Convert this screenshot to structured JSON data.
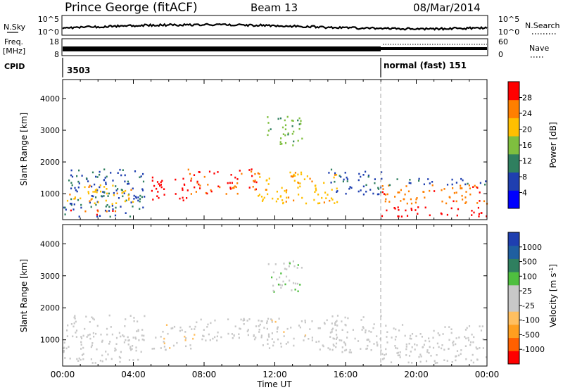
{
  "header": {
    "station": "Prince George (fitACF)",
    "beam": "Beam 13",
    "date": "08/Mar/2014"
  },
  "noise_panel": {
    "left_label": "N.Sky",
    "left_ticks": [
      "10^5",
      "10^0"
    ],
    "right_label": "N.Search",
    "right_ticks": [
      "10^5",
      "10^0"
    ]
  },
  "freq_panel": {
    "left_label_1": "Freq.",
    "left_label_2": "[MHz]",
    "left_ticks": [
      "18",
      "8"
    ],
    "right_label": "Nave",
    "right_ticks": [
      "60",
      "0"
    ]
  },
  "cpid_panel": {
    "label": "CPID",
    "mode_1": "3503",
    "mode_2": "normal (fast) 151"
  },
  "x_axis": {
    "label": "Time UT",
    "ticks": [
      "00:00",
      "04:00",
      "08:00",
      "12:00",
      "16:00",
      "20:00",
      "00:00"
    ]
  },
  "chart_data": [
    {
      "type": "heatmap",
      "title": "",
      "xlabel": "Time UT",
      "ylabel": "Slant Range [km]",
      "xlim_hours": [
        0,
        24
      ],
      "ylim": [
        180,
        4600
      ],
      "yticks": [
        1000,
        2000,
        3000,
        4000
      ],
      "colorbar": {
        "label": "Power [dB]",
        "ticks": [
          "28",
          "24",
          "20",
          "16",
          "12",
          "8",
          "4"
        ],
        "range": [
          0,
          30
        ],
        "colors": [
          "#0000ff",
          "#1f3fb0",
          "#2f7f5f",
          "#7fbf3f",
          "#ffbf00",
          "#ff7f00",
          "#ff0000"
        ]
      },
      "scatter_regions": [
        {
          "t0": 0.0,
          "t1": 4.6,
          "r0": 300,
          "r1": 1800,
          "level": 8
        },
        {
          "t0": 0.2,
          "t1": 4.0,
          "r0": 700,
          "r1": 1300,
          "level": 20
        },
        {
          "t0": 0.2,
          "t1": 3.0,
          "r0": 350,
          "r1": 500,
          "level": 26
        },
        {
          "t0": 5.0,
          "t1": 7.0,
          "r0": 800,
          "r1": 1600,
          "level": 28
        },
        {
          "t0": 7.0,
          "t1": 11.0,
          "r0": 1000,
          "r1": 1800,
          "level": 26
        },
        {
          "t0": 11.0,
          "t1": 15.5,
          "r0": 700,
          "r1": 1700,
          "level": 20
        },
        {
          "t0": 11.5,
          "t1": 13.5,
          "r0": 2500,
          "r1": 3500,
          "level": 14
        },
        {
          "t0": 15.0,
          "t1": 18.0,
          "r0": 1000,
          "r1": 1800,
          "level": 8
        },
        {
          "t0": 18.0,
          "t1": 24.0,
          "r0": 700,
          "r1": 1300,
          "level": 24
        },
        {
          "t0": 18.0,
          "t1": 24.0,
          "r0": 300,
          "r1": 600,
          "level": 28
        },
        {
          "t0": 18.0,
          "t1": 24.0,
          "r0": 1300,
          "r1": 1500,
          "level": 8
        }
      ]
    },
    {
      "type": "heatmap",
      "title": "",
      "xlabel": "Time UT",
      "ylabel": "Slant Range [km]",
      "xlim_hours": [
        0,
        24
      ],
      "ylim": [
        180,
        4600
      ],
      "yticks": [
        1000,
        2000,
        3000,
        4000
      ],
      "colorbar": {
        "label": "Velocity [m s^-1]",
        "ticks": [
          "1000",
          "500",
          "100",
          "25",
          "-25",
          "-100",
          "-500",
          "-1000"
        ],
        "range": [
          -1200,
          1200
        ],
        "colors": [
          "#ff0000",
          "#ff6000",
          "#ff9f1f",
          "#ffbf60",
          "#c8c8c8",
          "#c8c8c8",
          "#4fbf3f",
          "#2f7f5f",
          "#1f5fa0",
          "#1f3fb0"
        ]
      },
      "scatter_regions": [
        {
          "t0": 0.0,
          "t1": 4.6,
          "r0": 300,
          "r1": 1800,
          "level": 0
        },
        {
          "t0": 5.0,
          "t1": 7.5,
          "r0": 700,
          "r1": 1500,
          "level": -150
        },
        {
          "t0": 7.5,
          "t1": 11.0,
          "r0": 1000,
          "r1": 1700,
          "level": -60
        },
        {
          "t0": 11.0,
          "t1": 15.5,
          "r0": 700,
          "r1": 1700,
          "level": -80
        },
        {
          "t0": 11.5,
          "t1": 13.5,
          "r0": 2500,
          "r1": 3500,
          "level": 150
        },
        {
          "t0": 15.0,
          "t1": 18.0,
          "r0": 600,
          "r1": 1800,
          "level": 0
        },
        {
          "t0": 18.0,
          "t1": 24.0,
          "r0": 300,
          "r1": 1500,
          "level": 0
        }
      ]
    }
  ]
}
